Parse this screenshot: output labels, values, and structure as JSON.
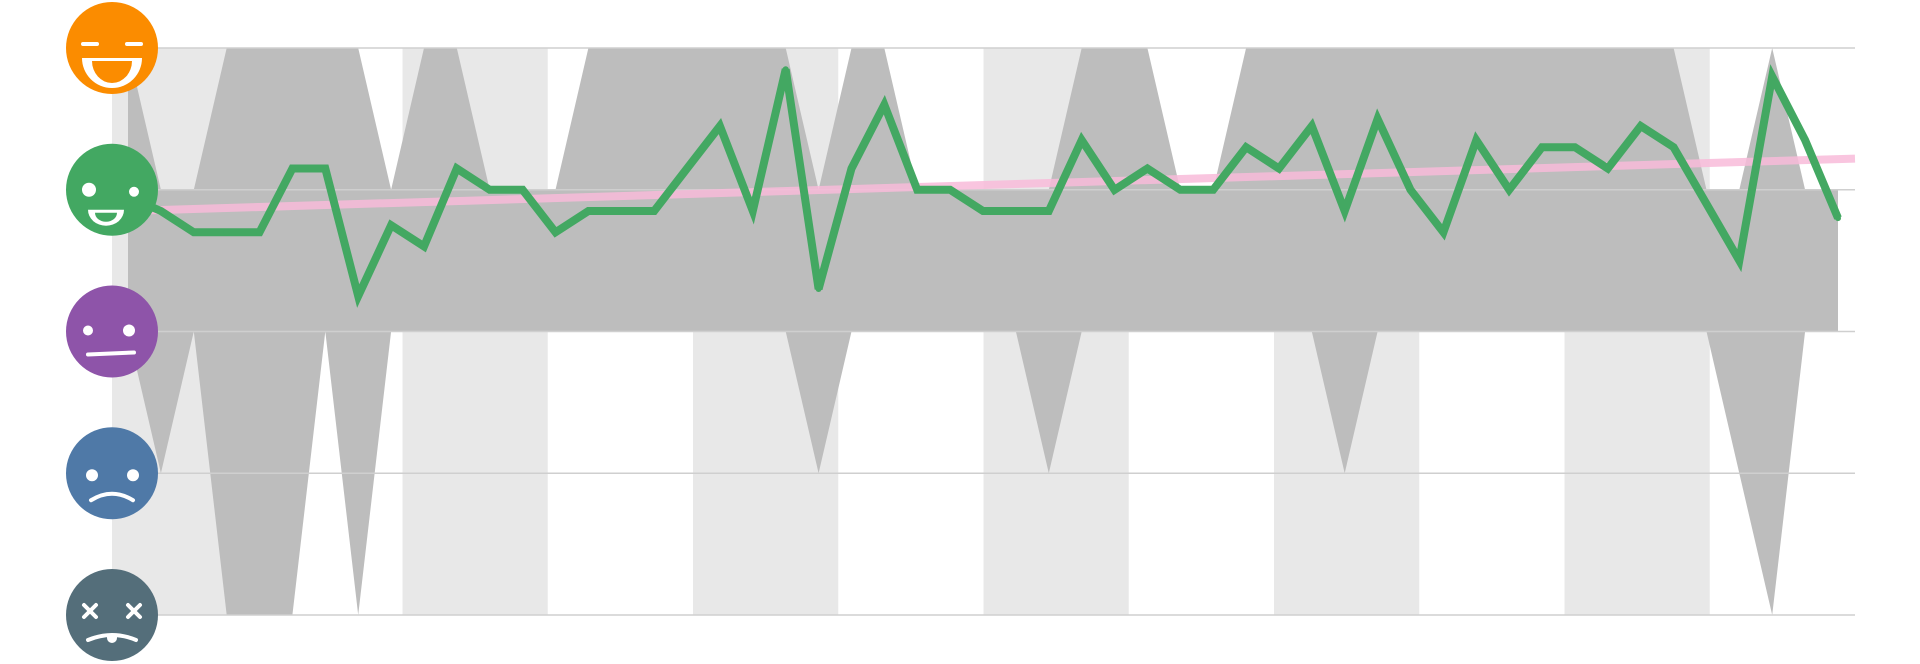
{
  "chart_data": {
    "type": "line",
    "title": "",
    "xlabel": "",
    "ylabel": "",
    "y_levels": [
      {
        "value": 5,
        "icon": "rad-face-icon",
        "color": "#FB8C00"
      },
      {
        "value": 4,
        "icon": "good-face-icon",
        "color": "#43A862"
      },
      {
        "value": 3,
        "icon": "meh-face-icon",
        "color": "#8E54A9"
      },
      {
        "value": 2,
        "icon": "bad-face-icon",
        "color": "#4F79A7"
      },
      {
        "value": 1,
        "icon": "awful-face-icon",
        "color": "#546E7A"
      }
    ],
    "ylim": [
      1,
      5
    ],
    "grid": true,
    "series": [
      {
        "color": "#43A862",
        "values": [
          3.95,
          3.85,
          3.7,
          3.7,
          3.7,
          4.15,
          4.15,
          3.25,
          3.75,
          3.6,
          4.15,
          4.0,
          4.0,
          3.7,
          3.85,
          3.85,
          3.85,
          4.15,
          4.45,
          3.85,
          4.85,
          3.3,
          4.15,
          4.6,
          4.0,
          4.0,
          3.85,
          3.85,
          3.85,
          4.35,
          4.0,
          4.15,
          4.0,
          4.0,
          4.3,
          4.15,
          4.45,
          3.85,
          4.5,
          4.0,
          3.7,
          4.35,
          4.0,
          4.3,
          4.3,
          4.15,
          4.45,
          4.3,
          3.9,
          3.5,
          4.8,
          4.35,
          3.8
        ]
      }
    ],
    "trend": {
      "color": "#F8BBD9",
      "start": 3.85,
      "end": 4.22
    },
    "range_upper": [
      5,
      4,
      4,
      5,
      5,
      5,
      5,
      5,
      4,
      5,
      5,
      4,
      4,
      4,
      5,
      5,
      5,
      5,
      5,
      5,
      5,
      4,
      5,
      5,
      4,
      4,
      4,
      4,
      4,
      5,
      5,
      5,
      4,
      4,
      5,
      5,
      5,
      5,
      5,
      5,
      5,
      5,
      5,
      5,
      5,
      5,
      5,
      5,
      4,
      4,
      5,
      4,
      4
    ],
    "range_lower": [
      3,
      2,
      3,
      1,
      1,
      1,
      3,
      1,
      3,
      3,
      3,
      3,
      3,
      3,
      3,
      3,
      3,
      3,
      3,
      3,
      3,
      2,
      3,
      3,
      3,
      3,
      3,
      3,
      2,
      3,
      3,
      3,
      3,
      3,
      3,
      3,
      3,
      2,
      3,
      3,
      3,
      3,
      3,
      3,
      3,
      3,
      3,
      3,
      3,
      2,
      1,
      3,
      3
    ],
    "column_bands": 12
  }
}
